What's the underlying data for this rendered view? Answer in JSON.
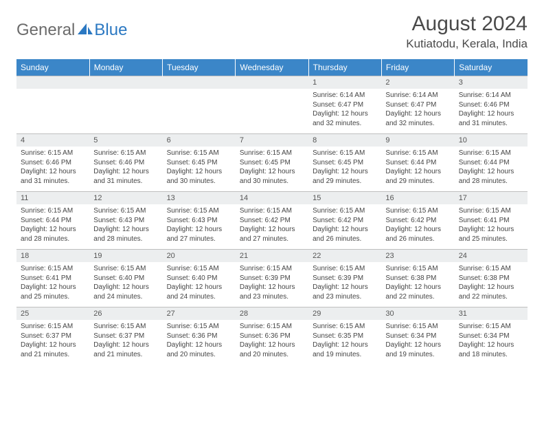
{
  "brand": {
    "part1": "General",
    "part2": "Blue"
  },
  "title": "August 2024",
  "location": "Kutiatodu, Kerala, India",
  "colors": {
    "header_bg": "#3b86c8",
    "header_fg": "#ffffff",
    "daynum_bg": "#eceeef",
    "text": "#444444",
    "brand_gray": "#6b6b6b",
    "brand_blue": "#2b78c2",
    "rule": "#bfbfbf"
  },
  "dow": [
    "Sunday",
    "Monday",
    "Tuesday",
    "Wednesday",
    "Thursday",
    "Friday",
    "Saturday"
  ],
  "weeks": [
    {
      "nums": [
        "",
        "",
        "",
        "",
        1,
        2,
        3
      ],
      "cells": [
        null,
        null,
        null,
        null,
        {
          "sr": "6:14 AM",
          "ss": "6:47 PM",
          "dl": "12 hours and 32 minutes."
        },
        {
          "sr": "6:14 AM",
          "ss": "6:47 PM",
          "dl": "12 hours and 32 minutes."
        },
        {
          "sr": "6:14 AM",
          "ss": "6:46 PM",
          "dl": "12 hours and 31 minutes."
        }
      ]
    },
    {
      "nums": [
        4,
        5,
        6,
        7,
        8,
        9,
        10
      ],
      "cells": [
        {
          "sr": "6:15 AM",
          "ss": "6:46 PM",
          "dl": "12 hours and 31 minutes."
        },
        {
          "sr": "6:15 AM",
          "ss": "6:46 PM",
          "dl": "12 hours and 31 minutes."
        },
        {
          "sr": "6:15 AM",
          "ss": "6:45 PM",
          "dl": "12 hours and 30 minutes."
        },
        {
          "sr": "6:15 AM",
          "ss": "6:45 PM",
          "dl": "12 hours and 30 minutes."
        },
        {
          "sr": "6:15 AM",
          "ss": "6:45 PM",
          "dl": "12 hours and 29 minutes."
        },
        {
          "sr": "6:15 AM",
          "ss": "6:44 PM",
          "dl": "12 hours and 29 minutes."
        },
        {
          "sr": "6:15 AM",
          "ss": "6:44 PM",
          "dl": "12 hours and 28 minutes."
        }
      ]
    },
    {
      "nums": [
        11,
        12,
        13,
        14,
        15,
        16,
        17
      ],
      "cells": [
        {
          "sr": "6:15 AM",
          "ss": "6:44 PM",
          "dl": "12 hours and 28 minutes."
        },
        {
          "sr": "6:15 AM",
          "ss": "6:43 PM",
          "dl": "12 hours and 28 minutes."
        },
        {
          "sr": "6:15 AM",
          "ss": "6:43 PM",
          "dl": "12 hours and 27 minutes."
        },
        {
          "sr": "6:15 AM",
          "ss": "6:42 PM",
          "dl": "12 hours and 27 minutes."
        },
        {
          "sr": "6:15 AM",
          "ss": "6:42 PM",
          "dl": "12 hours and 26 minutes."
        },
        {
          "sr": "6:15 AM",
          "ss": "6:42 PM",
          "dl": "12 hours and 26 minutes."
        },
        {
          "sr": "6:15 AM",
          "ss": "6:41 PM",
          "dl": "12 hours and 25 minutes."
        }
      ]
    },
    {
      "nums": [
        18,
        19,
        20,
        21,
        22,
        23,
        24
      ],
      "cells": [
        {
          "sr": "6:15 AM",
          "ss": "6:41 PM",
          "dl": "12 hours and 25 minutes."
        },
        {
          "sr": "6:15 AM",
          "ss": "6:40 PM",
          "dl": "12 hours and 24 minutes."
        },
        {
          "sr": "6:15 AM",
          "ss": "6:40 PM",
          "dl": "12 hours and 24 minutes."
        },
        {
          "sr": "6:15 AM",
          "ss": "6:39 PM",
          "dl": "12 hours and 23 minutes."
        },
        {
          "sr": "6:15 AM",
          "ss": "6:39 PM",
          "dl": "12 hours and 23 minutes."
        },
        {
          "sr": "6:15 AM",
          "ss": "6:38 PM",
          "dl": "12 hours and 22 minutes."
        },
        {
          "sr": "6:15 AM",
          "ss": "6:38 PM",
          "dl": "12 hours and 22 minutes."
        }
      ]
    },
    {
      "nums": [
        25,
        26,
        27,
        28,
        29,
        30,
        31
      ],
      "cells": [
        {
          "sr": "6:15 AM",
          "ss": "6:37 PM",
          "dl": "12 hours and 21 minutes."
        },
        {
          "sr": "6:15 AM",
          "ss": "6:37 PM",
          "dl": "12 hours and 21 minutes."
        },
        {
          "sr": "6:15 AM",
          "ss": "6:36 PM",
          "dl": "12 hours and 20 minutes."
        },
        {
          "sr": "6:15 AM",
          "ss": "6:36 PM",
          "dl": "12 hours and 20 minutes."
        },
        {
          "sr": "6:15 AM",
          "ss": "6:35 PM",
          "dl": "12 hours and 19 minutes."
        },
        {
          "sr": "6:15 AM",
          "ss": "6:34 PM",
          "dl": "12 hours and 19 minutes."
        },
        {
          "sr": "6:15 AM",
          "ss": "6:34 PM",
          "dl": "12 hours and 18 minutes."
        }
      ]
    }
  ],
  "labels": {
    "sunrise": "Sunrise:",
    "sunset": "Sunset:",
    "daylight": "Daylight:"
  }
}
